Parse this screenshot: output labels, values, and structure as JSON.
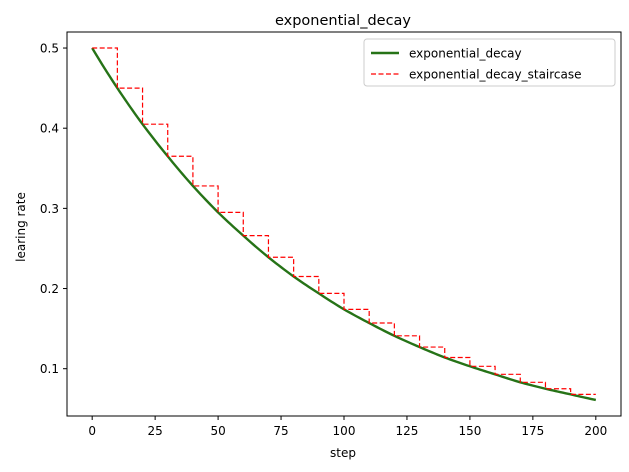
{
  "chart_data": {
    "type": "line",
    "title": "exponential_decay",
    "xlabel": "step",
    "ylabel": "learing rate",
    "xlim": [
      -10,
      210
    ],
    "ylim": [
      0.041,
      0.52
    ],
    "xticks": [
      0,
      25,
      50,
      75,
      100,
      125,
      150,
      175,
      200
    ],
    "xtick_labels": [
      "0",
      "25",
      "50",
      "75",
      "100",
      "125",
      "150",
      "175",
      "200"
    ],
    "yticks": [
      0.1,
      0.2,
      0.3,
      0.4,
      0.5
    ],
    "ytick_labels": [
      "0.1",
      "0.2",
      "0.3",
      "0.4",
      "0.5"
    ],
    "grid": false,
    "legend_position": "top-right",
    "series": [
      {
        "name": "exponential_decay",
        "color": "#267317",
        "style": "solid",
        "x": [
          0,
          10,
          20,
          30,
          40,
          50,
          60,
          70,
          80,
          90,
          100,
          110,
          120,
          130,
          140,
          150,
          160,
          170,
          180,
          190,
          200
        ],
        "values": [
          0.5,
          0.45,
          0.405,
          0.365,
          0.328,
          0.295,
          0.266,
          0.239,
          0.215,
          0.194,
          0.174,
          0.157,
          0.141,
          0.127,
          0.114,
          0.103,
          0.093,
          0.083,
          0.075,
          0.068,
          0.061
        ]
      },
      {
        "name": "exponential_decay_staircase",
        "color": "#ff0000",
        "style": "dashed",
        "x": [
          0,
          10,
          20,
          30,
          40,
          50,
          60,
          70,
          80,
          90,
          100,
          110,
          120,
          130,
          140,
          150,
          160,
          170,
          180,
          190
        ],
        "values": [
          0.5,
          0.45,
          0.405,
          0.365,
          0.328,
          0.295,
          0.266,
          0.239,
          0.215,
          0.194,
          0.174,
          0.157,
          0.141,
          0.127,
          0.114,
          0.103,
          0.093,
          0.083,
          0.075,
          0.068
        ],
        "end_x": 200
      }
    ]
  }
}
